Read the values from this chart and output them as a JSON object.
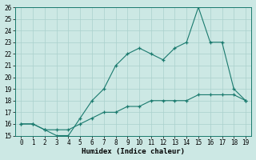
{
  "xlabel": "Humidex (Indice chaleur)",
  "x": [
    0,
    1,
    2,
    3,
    4,
    5,
    6,
    7,
    8,
    9,
    10,
    11,
    12,
    13,
    14,
    15,
    16,
    17,
    18,
    19
  ],
  "y_upper": [
    16,
    16,
    15.5,
    15,
    15,
    16.5,
    18,
    19,
    21,
    22,
    22.5,
    22,
    21.5,
    22.5,
    23,
    26,
    23,
    23,
    19,
    18
  ],
  "y_lower": [
    16,
    16,
    15.5,
    15.5,
    15.5,
    16,
    16.5,
    17,
    17,
    17.5,
    17.5,
    18,
    18,
    18,
    18,
    18.5,
    18.5,
    18.5,
    18.5,
    18
  ],
  "line_color": "#1a7a6e",
  "bg_color": "#cce8e4",
  "grid_color": "#aad0cc",
  "ylim": [
    15,
    26
  ],
  "xlim": [
    -0.5,
    19.5
  ],
  "yticks": [
    15,
    16,
    17,
    18,
    19,
    20,
    21,
    22,
    23,
    24,
    25,
    26
  ],
  "xticks": [
    0,
    1,
    2,
    3,
    4,
    5,
    6,
    7,
    8,
    9,
    10,
    11,
    12,
    13,
    14,
    15,
    16,
    17,
    18,
    19
  ],
  "tick_fontsize": 5.5,
  "label_fontsize": 6.5
}
